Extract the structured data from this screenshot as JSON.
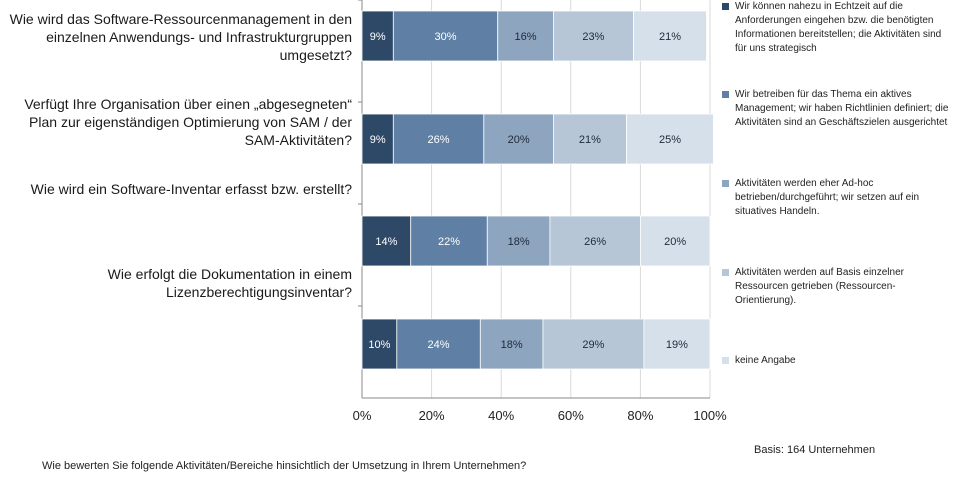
{
  "chart_data": {
    "type": "bar",
    "orientation": "horizontal",
    "stacked": true,
    "percent_scale": true,
    "categories": [
      "Wie wird das Software-Ressourcenmanagement in den einzelnen Anwendungs- und Infrastrukturgruppen umgesetzt?",
      "Verfügt Ihre Organisation über einen „abgesegneten“ Plan zur eigenständigen Optimierung von SAM / der SAM-Aktivitäten?",
      "Wie wird ein Software-Inventar erfasst bzw. erstellt?",
      "Wie erfolgt die Dokumentation in einem Lizenzberechtigungsinventar?"
    ],
    "series": [
      {
        "name": "Wir können nahezu in Echtzeit auf die Anforderungen eingehen bzw. die benötigten Informationen bereitstellen; die Aktivitäten sind für uns strategisch",
        "color": "#2e4968",
        "label_color": "#ffffff",
        "values": [
          9,
          9,
          14,
          10
        ]
      },
      {
        "name": "Wir betreiben für das Thema ein aktives Management; wir haben Richtlinien definiert; die Aktivitäten sind an Geschäftszielen ausgerichtet",
        "color": "#5f7fa4",
        "label_color": "#ffffff",
        "values": [
          30,
          26,
          22,
          24
        ]
      },
      {
        "name": "Aktivitäten werden eher Ad-hoc betrieben/durchgeführt; wir setzen auf ein situatives Handeln.",
        "color": "#8ea5bf",
        "label_color": "#1f2a38",
        "values": [
          16,
          20,
          18,
          18
        ]
      },
      {
        "name": "Aktivitäten werden auf Basis einzelner Ressourcen getrieben (Ressourcen-Orientierung).",
        "color": "#b6c6d7",
        "label_color": "#1f2a38",
        "values": [
          23,
          21,
          26,
          29
        ]
      },
      {
        "name": "keine Angabe",
        "color": "#d6e0ea",
        "label_color": "#1f2a38",
        "values": [
          21,
          25,
          20,
          19
        ]
      }
    ],
    "x_ticks": [
      "0%",
      "20%",
      "40%",
      "60%",
      "80%",
      "100%"
    ],
    "xlim": [
      0,
      100
    ],
    "value_suffix": "%",
    "legend_position": "right"
  },
  "base_note": "Basis: 164 Unternehmen",
  "question": "Wie bewerten Sie folgende Aktivitäten/Bereiche hinsichtlich der Umsetzung in Ihrem Unternehmen?"
}
